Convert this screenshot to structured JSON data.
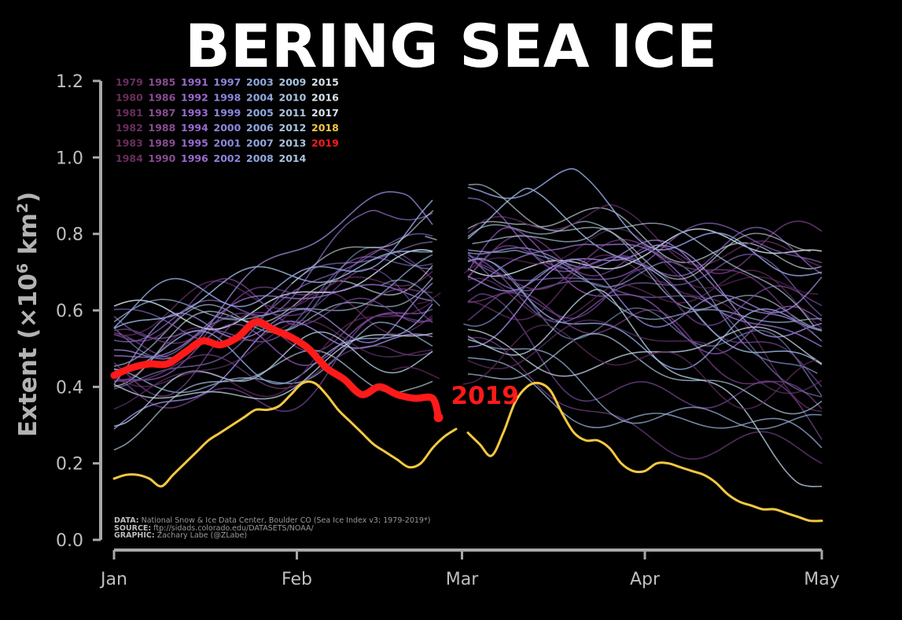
{
  "title": "BERING SEA ICE",
  "credits": {
    "data_key": "DATA:",
    "data_text": "National Snow & Ice Data Center, Boulder CO (Sea Ice Index v3; 1979-2019*)",
    "source_key": "SOURCE:",
    "source_text": "ftp://sidads.colorado.edu/DATASETS/NOAA/",
    "graphic_key": "GRAPHIC:",
    "graphic_text": "Zachary Labe (@ZLabe)"
  },
  "chart_data": {
    "type": "line",
    "title": "BERING SEA ICE",
    "ylabel_main": "Extent (",
    "ylabel_times": "×10",
    "ylabel_exp": "6",
    "ylabel_unit": " km",
    "ylabel_unit_exp": "2",
    "ylabel_close": ")",
    "ylim": [
      0,
      1.2
    ],
    "yticks": [
      "0.0",
      "0.2",
      "0.4",
      "0.6",
      "0.8",
      "1.0",
      "1.2"
    ],
    "xlim": [
      1,
      121
    ],
    "xticks": [
      {
        "day": 1,
        "label": "Jan"
      },
      {
        "day": 32,
        "label": "Feb"
      },
      {
        "day": 60,
        "label": "Mar"
      },
      {
        "day": 91,
        "label": "Apr"
      },
      {
        "day": 121,
        "label": "May"
      }
    ],
    "grid": false,
    "legend_position": "top-left",
    "legend": [
      [
        "1979",
        "1985",
        "1991",
        "1997",
        "2003",
        "2009",
        "2015"
      ],
      [
        "1980",
        "1986",
        "1992",
        "1998",
        "2004",
        "2010",
        "2016"
      ],
      [
        "1981",
        "1987",
        "1993",
        "1999",
        "2005",
        "2011",
        "2017"
      ],
      [
        "1982",
        "1988",
        "1994",
        "2000",
        "2006",
        "2012",
        "2018"
      ],
      [
        "1983",
        "1989",
        "1995",
        "2001",
        "2007",
        "2013",
        "2019"
      ],
      [
        "1984",
        "1990",
        "1996",
        "2002",
        "2008",
        "2014",
        ""
      ]
    ],
    "highlight_label": "2019",
    "highlight_colors": {
      "2019": "#ff1a1a",
      "2018": "#f5c840"
    },
    "gap_days": [
      57,
      60
    ],
    "series": [
      {
        "name": "2019",
        "color": "#ff1a1a",
        "x": [
          1,
          4,
          7,
          10,
          13,
          16,
          19,
          22,
          25,
          28,
          31,
          34,
          37,
          40,
          43,
          46,
          49,
          52,
          55,
          56
        ],
        "y": [
          0.43,
          0.45,
          0.46,
          0.46,
          0.49,
          0.52,
          0.51,
          0.53,
          0.57,
          0.55,
          0.53,
          0.5,
          0.45,
          0.42,
          0.38,
          0.4,
          0.38,
          0.37,
          0.37,
          0.32
        ]
      },
      {
        "name": "2018",
        "color": "#f5c840",
        "x": [
          1,
          3,
          5,
          7,
          9,
          11,
          13,
          15,
          17,
          19,
          21,
          23,
          25,
          27,
          29,
          31,
          33,
          35,
          37,
          39,
          41,
          43,
          45,
          47,
          49,
          51,
          53,
          55,
          57,
          59,
          61,
          63,
          65,
          67,
          69,
          71,
          73,
          75,
          77,
          79,
          81,
          83,
          85,
          87,
          89,
          91,
          93,
          95,
          97,
          99,
          101,
          103,
          105,
          107,
          109,
          111,
          113,
          115,
          117,
          119,
          121
        ],
        "y": [
          0.16,
          0.17,
          0.17,
          0.16,
          0.14,
          0.17,
          0.2,
          0.23,
          0.26,
          0.28,
          0.3,
          0.32,
          0.34,
          0.34,
          0.35,
          0.38,
          0.41,
          0.41,
          0.38,
          0.34,
          0.31,
          0.28,
          0.25,
          0.23,
          0.21,
          0.19,
          0.2,
          0.24,
          0.27,
          0.29,
          0.28,
          0.25,
          0.22,
          0.28,
          0.36,
          0.4,
          0.41,
          0.39,
          0.33,
          0.28,
          0.26,
          0.26,
          0.24,
          0.2,
          0.18,
          0.18,
          0.2,
          0.2,
          0.19,
          0.18,
          0.17,
          0.15,
          0.12,
          0.1,
          0.09,
          0.08,
          0.08,
          0.07,
          0.06,
          0.05,
          0.05
        ]
      }
    ]
  }
}
